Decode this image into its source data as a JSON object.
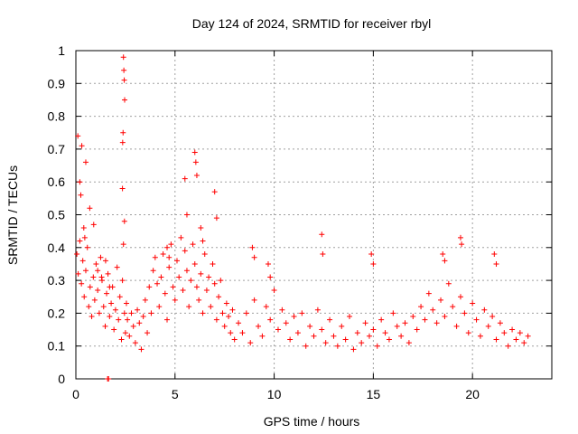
{
  "chart_data": {
    "type": "scatter",
    "title": "Day 124 of 2024, SRMTID for receiver rbyl",
    "xlabel": "GPS time / hours",
    "ylabel": "SRMTID / TECUs",
    "xlim": [
      0,
      24
    ],
    "ylim": [
      0,
      1
    ],
    "xticks": [
      0,
      5,
      10,
      15,
      20
    ],
    "yticks": [
      0,
      0.1,
      0.2,
      0.3,
      0.4,
      0.5,
      0.6,
      0.7,
      0.8,
      0.9,
      1
    ],
    "xtick_labels": [
      "0",
      "5",
      "10",
      "15",
      "20"
    ],
    "ytick_labels": [
      "0",
      "0.1",
      "0.2",
      "0.3",
      "0.4",
      "0.5",
      "0.6",
      "0.7",
      "0.8",
      "0.9",
      "1"
    ],
    "grid": true,
    "marker": "+",
    "color": "#ff0000",
    "series": [
      {
        "name": "SRMTID",
        "x": [
          0.05,
          0.12,
          0.2,
          0.28,
          0.35,
          0.42,
          0.5,
          0.58,
          0.65,
          0.72,
          0.8,
          0.88,
          0.95,
          1.02,
          1.1,
          1.18,
          1.25,
          1.32,
          1.4,
          1.48,
          1.55,
          1.62,
          1.7,
          1.78,
          1.85,
          1.92,
          2.0,
          2.08,
          2.15,
          2.22,
          2.3,
          2.35,
          2.4,
          2.45,
          2.5,
          2.55,
          2.6,
          2.7,
          2.8,
          2.9,
          3.0,
          3.1,
          3.2,
          3.3,
          3.4,
          3.5,
          3.6,
          3.7,
          3.8,
          3.9,
          4.0,
          4.1,
          4.2,
          4.3,
          4.4,
          4.5,
          4.6,
          4.7,
          4.8,
          4.9,
          5.0,
          5.1,
          5.2,
          5.3,
          5.4,
          5.5,
          5.6,
          5.7,
          5.8,
          5.9,
          6.0,
          6.1,
          6.2,
          6.3,
          6.4,
          6.5,
          6.6,
          6.7,
          6.8,
          6.9,
          7.0,
          7.1,
          7.2,
          7.3,
          7.4,
          7.5,
          7.6,
          7.7,
          7.8,
          7.9,
          8.0,
          8.2,
          8.4,
          8.6,
          8.8,
          9.0,
          9.2,
          9.4,
          9.6,
          9.8,
          10.0,
          10.2,
          10.4,
          10.6,
          10.8,
          11.0,
          11.2,
          11.4,
          11.6,
          11.8,
          12.0,
          12.2,
          12.4,
          12.6,
          12.8,
          13.0,
          13.2,
          13.4,
          13.6,
          13.8,
          14.0,
          14.2,
          14.4,
          14.6,
          14.8,
          15.0,
          15.2,
          15.4,
          15.6,
          15.8,
          16.0,
          16.2,
          16.4,
          16.6,
          16.8,
          17.0,
          17.2,
          17.4,
          17.6,
          17.8,
          18.0,
          18.2,
          18.4,
          18.6,
          18.8,
          19.0,
          19.2,
          19.4,
          19.6,
          19.8,
          20.0,
          20.2,
          20.4,
          20.6,
          20.8,
          21.0,
          21.2,
          21.4,
          21.6,
          21.8,
          22.0,
          22.2,
          22.4,
          22.6,
          22.8,
          0.1,
          0.3,
          0.5,
          0.7,
          0.9,
          1.1,
          1.3,
          1.5,
          1.7,
          2.4,
          2.42,
          2.44,
          2.46,
          2.38,
          2.36,
          5.5,
          5.6,
          6.0,
          6.05,
          6.1,
          7.0,
          7.1,
          4.6,
          4.7,
          0.2,
          0.25,
          0.4,
          0.45,
          12.4,
          12.45,
          19.4,
          19.45,
          14.9,
          15.0,
          8.9,
          9.0,
          9.7,
          9.8,
          18.5,
          18.6,
          21.1,
          21.2,
          2.35,
          2.45,
          6.3,
          6.4,
          1.6,
          1.65
        ],
        "y": [
          0.38,
          0.32,
          0.42,
          0.29,
          0.36,
          0.25,
          0.33,
          0.4,
          0.22,
          0.28,
          0.19,
          0.31,
          0.24,
          0.35,
          0.27,
          0.2,
          0.37,
          0.3,
          0.22,
          0.16,
          0.26,
          0.32,
          0.19,
          0.23,
          0.28,
          0.15,
          0.21,
          0.34,
          0.18,
          0.25,
          0.12,
          0.3,
          0.41,
          0.2,
          0.14,
          0.23,
          0.18,
          0.13,
          0.2,
          0.16,
          0.11,
          0.21,
          0.17,
          0.09,
          0.19,
          0.24,
          0.14,
          0.28,
          0.2,
          0.33,
          0.37,
          0.29,
          0.22,
          0.31,
          0.38,
          0.26,
          0.18,
          0.34,
          0.41,
          0.28,
          0.24,
          0.36,
          0.31,
          0.43,
          0.27,
          0.39,
          0.33,
          0.22,
          0.3,
          0.41,
          0.35,
          0.28,
          0.24,
          0.32,
          0.2,
          0.38,
          0.27,
          0.31,
          0.22,
          0.35,
          0.29,
          0.18,
          0.25,
          0.3,
          0.2,
          0.16,
          0.23,
          0.19,
          0.14,
          0.21,
          0.12,
          0.17,
          0.14,
          0.2,
          0.11,
          0.24,
          0.16,
          0.13,
          0.22,
          0.18,
          0.27,
          0.15,
          0.21,
          0.17,
          0.12,
          0.19,
          0.14,
          0.2,
          0.1,
          0.16,
          0.13,
          0.21,
          0.15,
          0.11,
          0.18,
          0.13,
          0.1,
          0.16,
          0.12,
          0.19,
          0.09,
          0.14,
          0.11,
          0.17,
          0.13,
          0.15,
          0.1,
          0.18,
          0.14,
          0.12,
          0.2,
          0.16,
          0.13,
          0.17,
          0.11,
          0.19,
          0.15,
          0.22,
          0.18,
          0.26,
          0.21,
          0.17,
          0.24,
          0.19,
          0.29,
          0.22,
          0.16,
          0.25,
          0.2,
          0.14,
          0.23,
          0.18,
          0.13,
          0.21,
          0.16,
          0.19,
          0.12,
          0.17,
          0.14,
          0.1,
          0.15,
          0.12,
          0.14,
          0.11,
          0.13,
          0.74,
          0.71,
          0.66,
          0.52,
          0.47,
          0.33,
          0.31,
          0.36,
          0.28,
          0.98,
          0.94,
          0.91,
          0.85,
          0.75,
          0.72,
          0.61,
          0.5,
          0.69,
          0.66,
          0.62,
          0.57,
          0.49,
          0.4,
          0.37,
          0.6,
          0.56,
          0.46,
          0.43,
          0.44,
          0.38,
          0.43,
          0.41,
          0.38,
          0.35,
          0.4,
          0.37,
          0.35,
          0.31,
          0.38,
          0.36,
          0.38,
          0.35,
          0.58,
          0.48,
          0.46,
          0.42,
          0.0,
          0.0
        ]
      }
    ]
  }
}
